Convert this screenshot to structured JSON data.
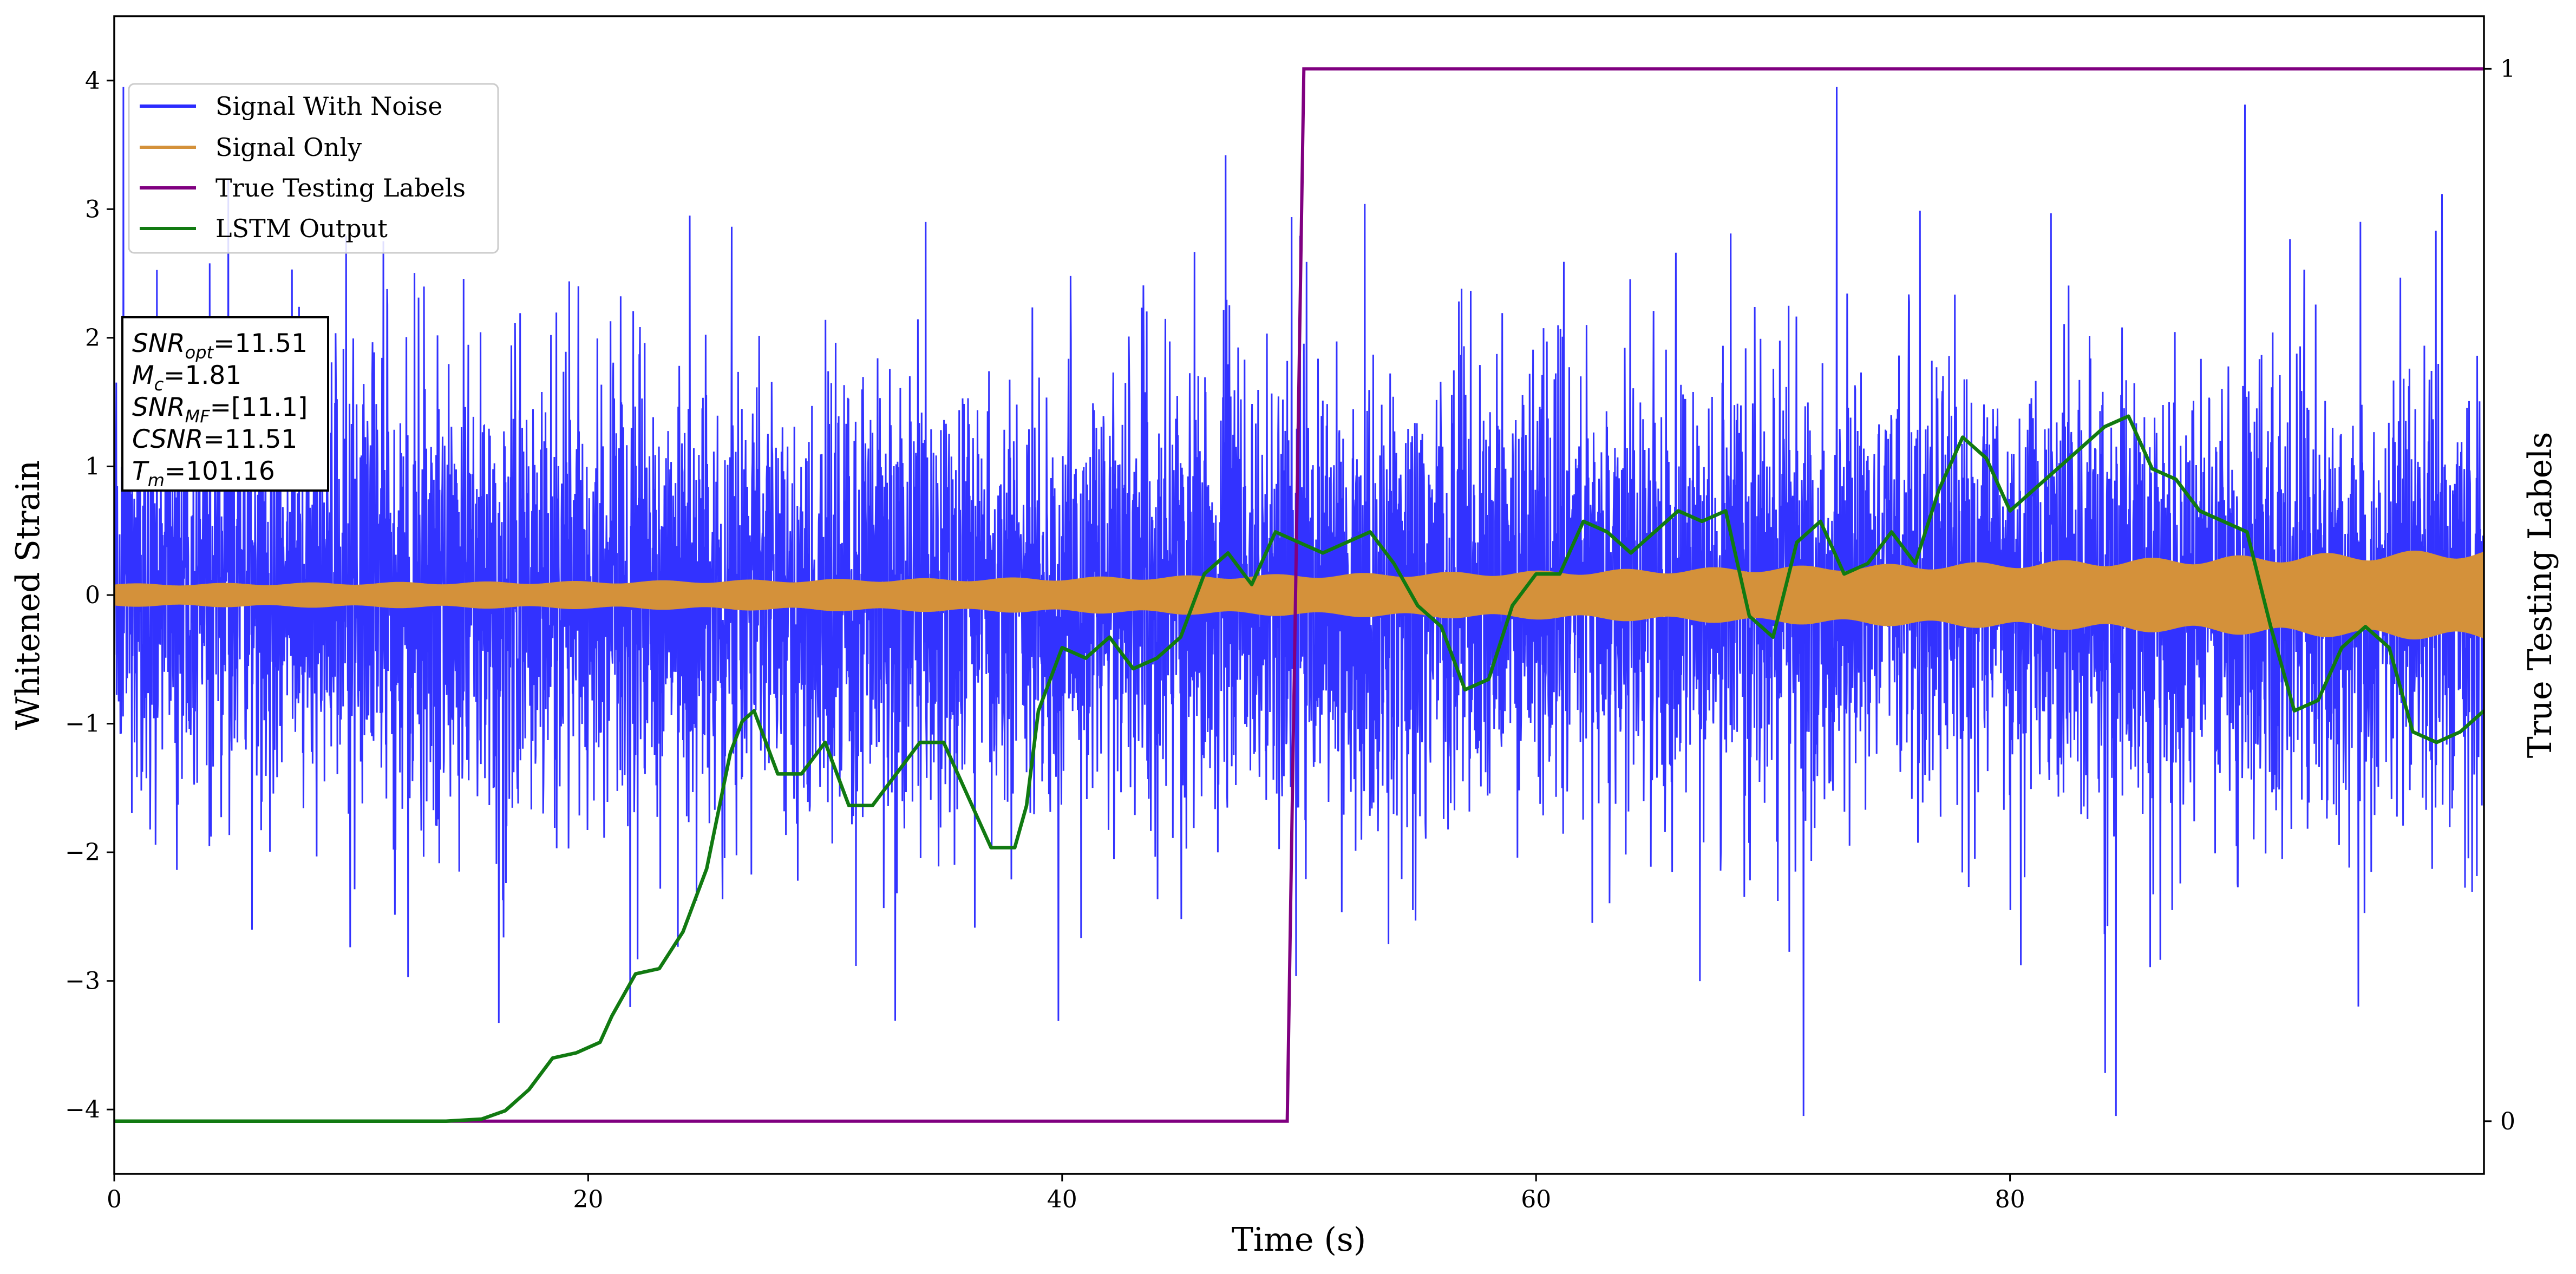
{
  "chart_data": {
    "type": "line",
    "title": "",
    "xlabel": "Time (s)",
    "ylabel": "Whitened Strain",
    "y2label": "True Testing Labels",
    "xlim": [
      0,
      100
    ],
    "ylim": [
      -4.5,
      4.5
    ],
    "y2lim": [
      -0.05,
      1.05
    ],
    "xticks": [
      0,
      20,
      40,
      60,
      80
    ],
    "yticks": [
      -4,
      -3,
      -2,
      -1,
      0,
      1,
      2,
      3,
      4
    ],
    "ytick_labels": [
      "−4",
      "−3",
      "−2",
      "−1",
      "0",
      "1",
      "2",
      "3",
      "4"
    ],
    "y2ticks": [
      0,
      1
    ],
    "grid": false,
    "legend_position": "top-left",
    "series": [
      {
        "name": "Signal With Noise",
        "color": "#2b2bff",
        "axis": "left",
        "kind": "noise",
        "approx_std": 0.85,
        "approx_min": -4.05,
        "approx_max": 3.95
      },
      {
        "name": "Signal Only",
        "color": "#d4913a",
        "axis": "left",
        "kind": "chirp-envelope",
        "envelope_x": [
          0,
          20,
          40,
          60,
          80,
          100
        ],
        "envelope_amplitude": [
          0.09,
          0.11,
          0.14,
          0.19,
          0.26,
          0.36
        ]
      },
      {
        "name": "True Testing Labels",
        "color": "#800080",
        "axis": "right",
        "x": [
          0,
          49.5,
          50.2,
          100
        ],
        "y": [
          0,
          0,
          1,
          1
        ]
      },
      {
        "name": "LSTM Output",
        "color": "#117a11",
        "axis": "right",
        "x": [
          0,
          14,
          15.5,
          16.5,
          17.5,
          18.5,
          19.5,
          20.5,
          21,
          22,
          23,
          24,
          25,
          26,
          26.5,
          27,
          28,
          29,
          30,
          31,
          32,
          33,
          34,
          35,
          36,
          37,
          38,
          38.5,
          39,
          40,
          41,
          42,
          43,
          44,
          45,
          46,
          47,
          48,
          49,
          50,
          51,
          52,
          53,
          54,
          55,
          56,
          57,
          58,
          59,
          60,
          61,
          62,
          63,
          64,
          65,
          66,
          67,
          68,
          69,
          70,
          71,
          72,
          73,
          74,
          75,
          76,
          77,
          78,
          79,
          80,
          81,
          82,
          83,
          84,
          85,
          86,
          87,
          88,
          89,
          90,
          91,
          92,
          93,
          94,
          95,
          96,
          97,
          98,
          99,
          100
        ],
        "y": [
          0,
          0,
          0.002,
          0.01,
          0.03,
          0.06,
          0.065,
          0.075,
          0.1,
          0.14,
          0.145,
          0.18,
          0.24,
          0.35,
          0.38,
          0.39,
          0.33,
          0.33,
          0.36,
          0.3,
          0.3,
          0.33,
          0.36,
          0.36,
          0.31,
          0.26,
          0.26,
          0.3,
          0.39,
          0.45,
          0.44,
          0.46,
          0.43,
          0.44,
          0.46,
          0.52,
          0.54,
          0.51,
          0.56,
          0.55,
          0.54,
          0.55,
          0.56,
          0.53,
          0.49,
          0.47,
          0.41,
          0.42,
          0.49,
          0.52,
          0.52,
          0.57,
          0.56,
          0.54,
          0.56,
          0.58,
          0.57,
          0.58,
          0.48,
          0.46,
          0.55,
          0.57,
          0.52,
          0.53,
          0.56,
          0.53,
          0.6,
          0.65,
          0.63,
          0.58,
          0.6,
          0.62,
          0.64,
          0.66,
          0.67,
          0.62,
          0.61,
          0.58,
          0.57,
          0.56,
          0.47,
          0.39,
          0.4,
          0.45,
          0.47,
          0.45,
          0.37,
          0.36,
          0.37,
          0.39
        ]
      }
    ],
    "annotation": {
      "lines": [
        {
          "sym": "SNR",
          "sub": "opt",
          "value": "=11.51"
        },
        {
          "sym": "M",
          "sub": "c",
          "value": "=1.81"
        },
        {
          "sym": "SNR",
          "sub": "MF",
          "value": "=[11.1]"
        },
        {
          "sym": "CSNR",
          "sub": "",
          "value": "=11.51"
        },
        {
          "sym": "T",
          "sub": "m",
          "value": "=101.16"
        }
      ]
    }
  }
}
